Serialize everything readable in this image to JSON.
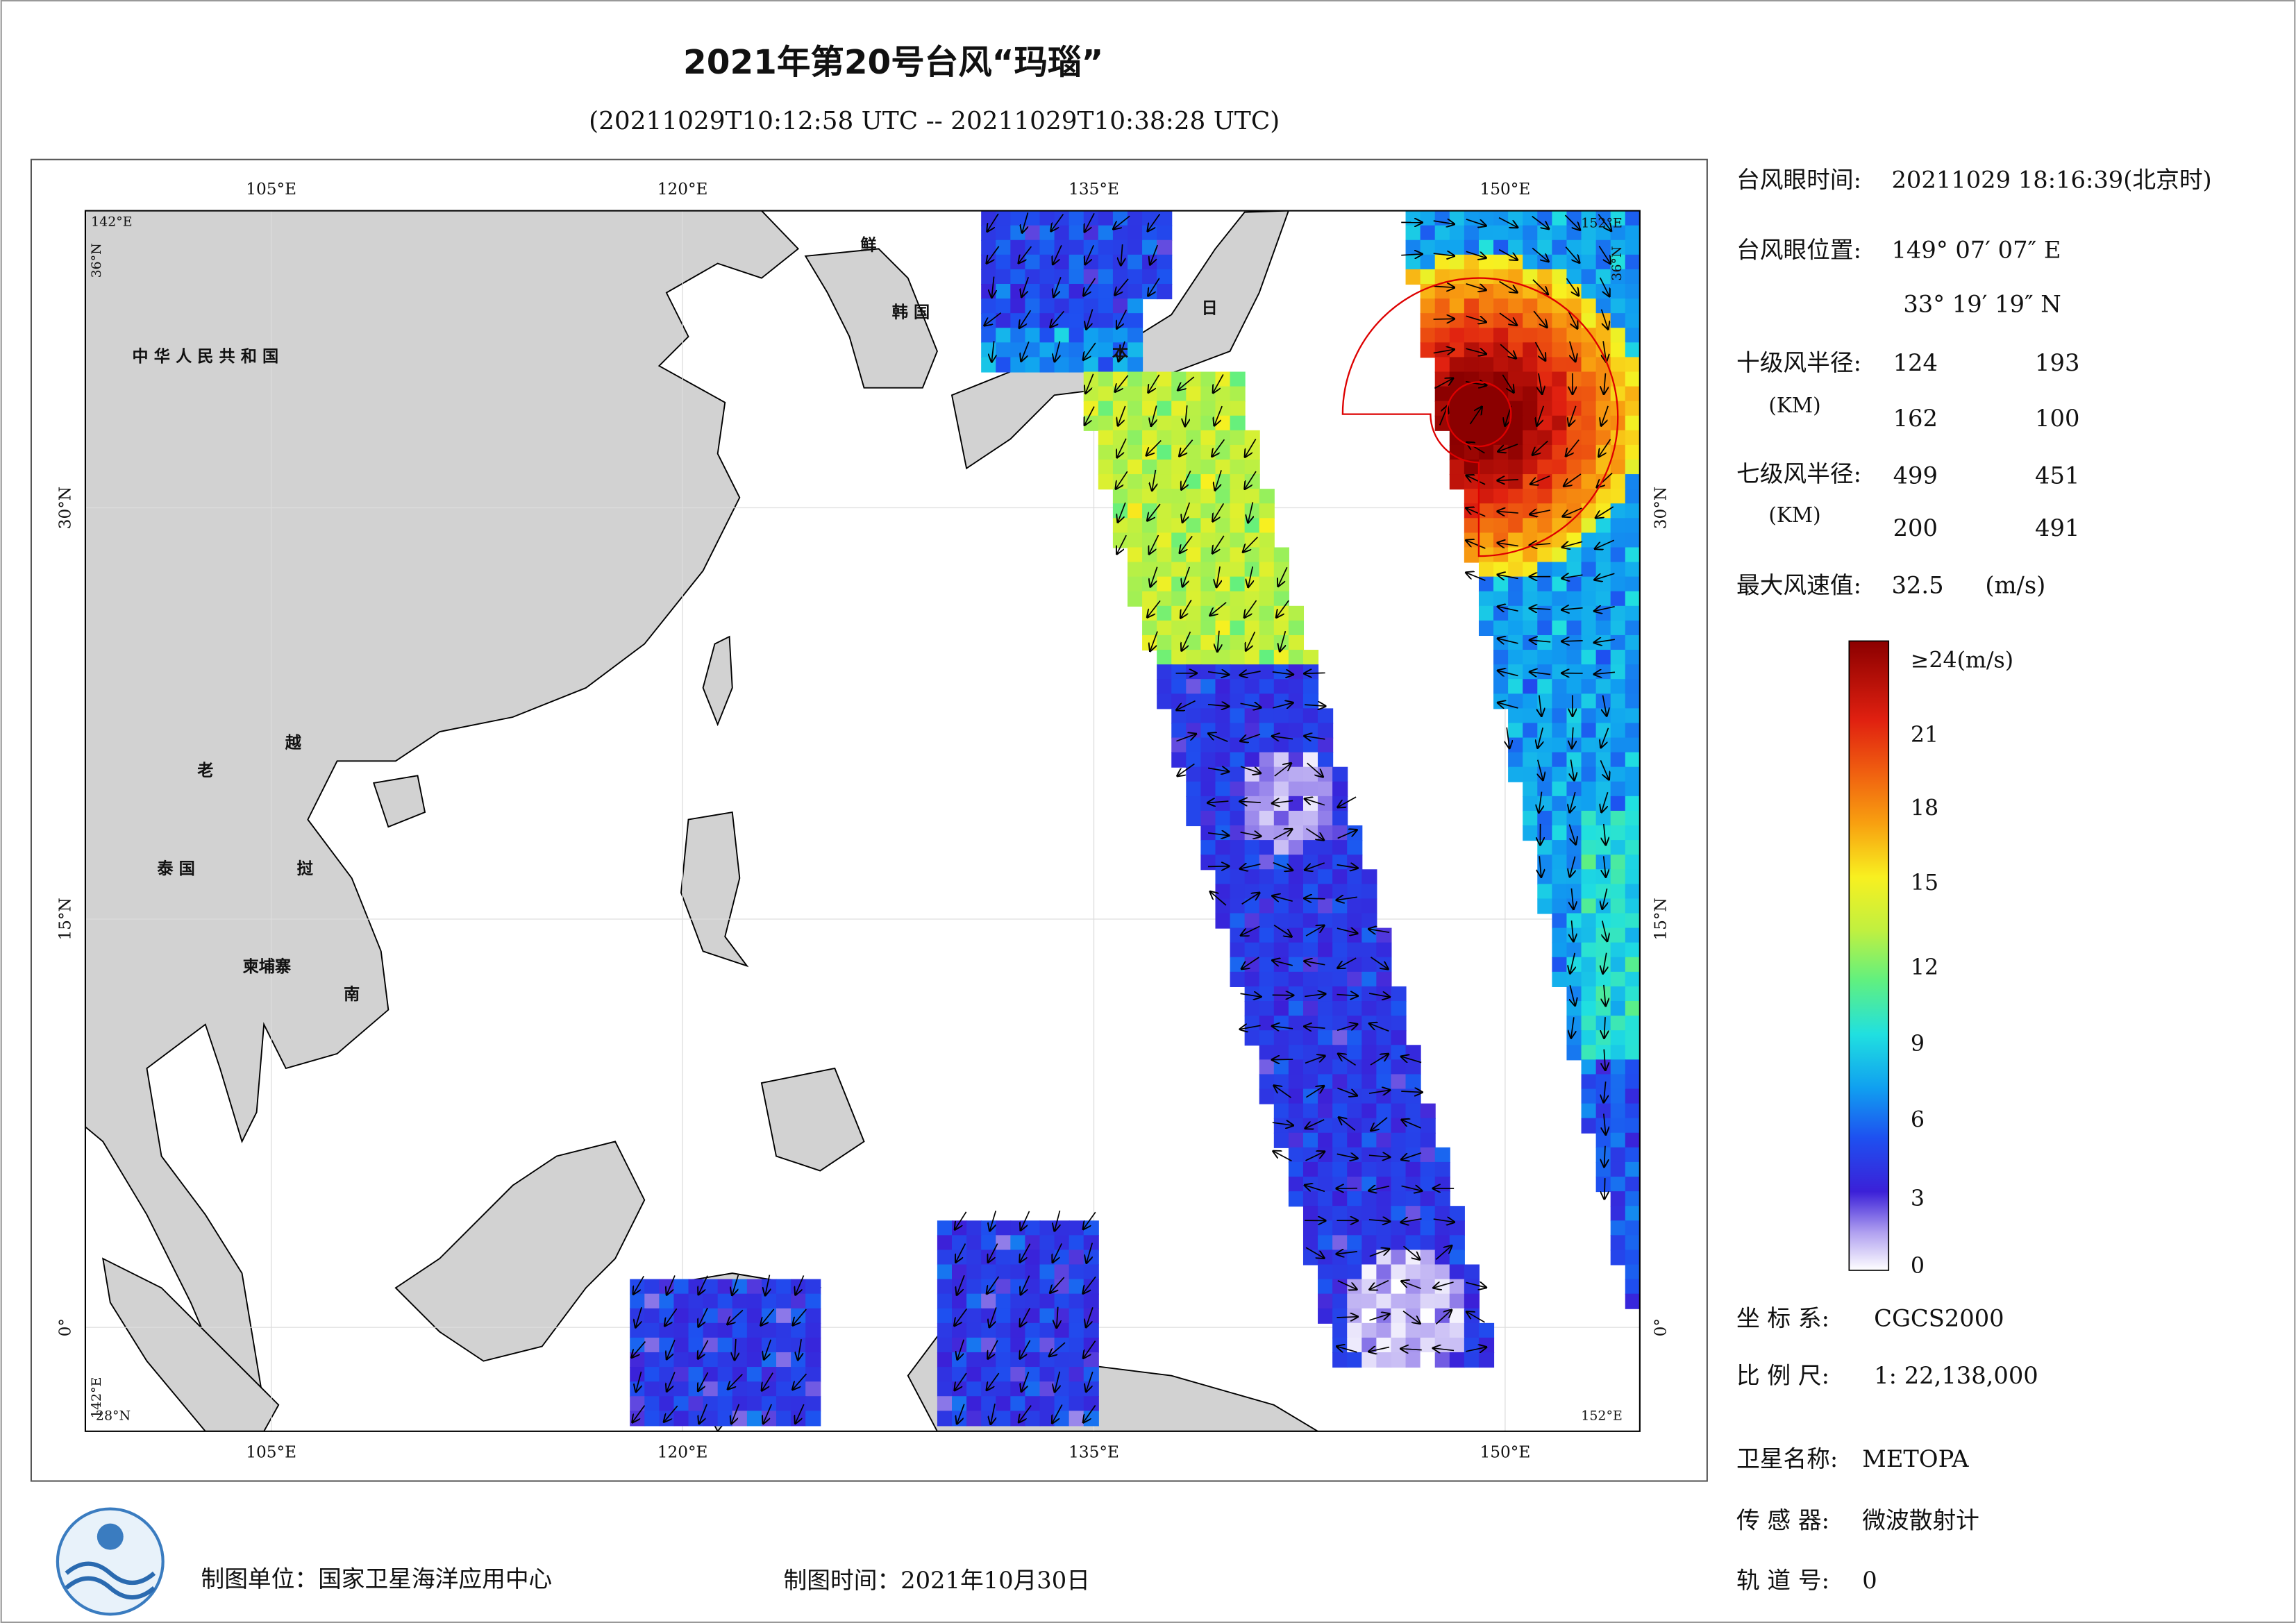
{
  "header": {
    "title": "2021年第20号台风“玛瑙”",
    "subtitle": "(20211029T10:12:58 UTC -- 20211029T10:38:28 UTC)"
  },
  "map": {
    "lon_labels": [
      "105°E",
      "120°E",
      "135°E",
      "150°E"
    ],
    "lat_labels": [
      "30°N",
      "15°N",
      "0°"
    ],
    "corner_labels": [
      "142°E",
      "36°N",
      "152°E",
      "36°N",
      "142°E",
      "28°N",
      "152°E"
    ],
    "place_labels": [
      "中 华 人 民 共 和 国",
      "老",
      "越",
      "泰 国",
      "挝",
      "柬埔寨",
      "南",
      "鲜",
      "韩 国",
      "日",
      "本"
    ]
  },
  "info": {
    "eye_time_label": "台风眼时间:",
    "eye_time": "20211029 18:16:39(北京时)",
    "eye_position_label": "台风眼位置:",
    "eye_lon": "149° 07′ 07″ E",
    "eye_lat": "33° 19′ 19″ N",
    "r10_label": "十级风半径:",
    "r10_unit": "(KM)",
    "r10": [
      "124",
      "193",
      "162",
      "100"
    ],
    "r7_label": "七级风半径:",
    "r7_unit": "(KM)",
    "r7": [
      "499",
      "451",
      "200",
      "491"
    ],
    "max_wind_label": "最大风速值:",
    "max_wind": "32.5",
    "max_wind_unit": "(m/s)"
  },
  "colorbar": {
    "labels": [
      "≥24(m/s)",
      "21",
      "18",
      "15",
      "12",
      "9",
      "6",
      "3",
      "0"
    ]
  },
  "meta": {
    "crs_label": "坐 标 系:",
    "crs": "CGCS2000",
    "scale_label": "比 例 尺:",
    "scale": "1: 22,138,000",
    "satellite_label": "卫星名称:",
    "satellite": "METOPA",
    "sensor_label": "传 感 器:",
    "sensor": "微波散射计",
    "orbit_label": "轨 道 号:",
    "orbit": "0"
  },
  "footer": {
    "producer": "制图单位：国家卫星海洋应用中心",
    "date": "制图时间：2021年10月30日"
  }
}
